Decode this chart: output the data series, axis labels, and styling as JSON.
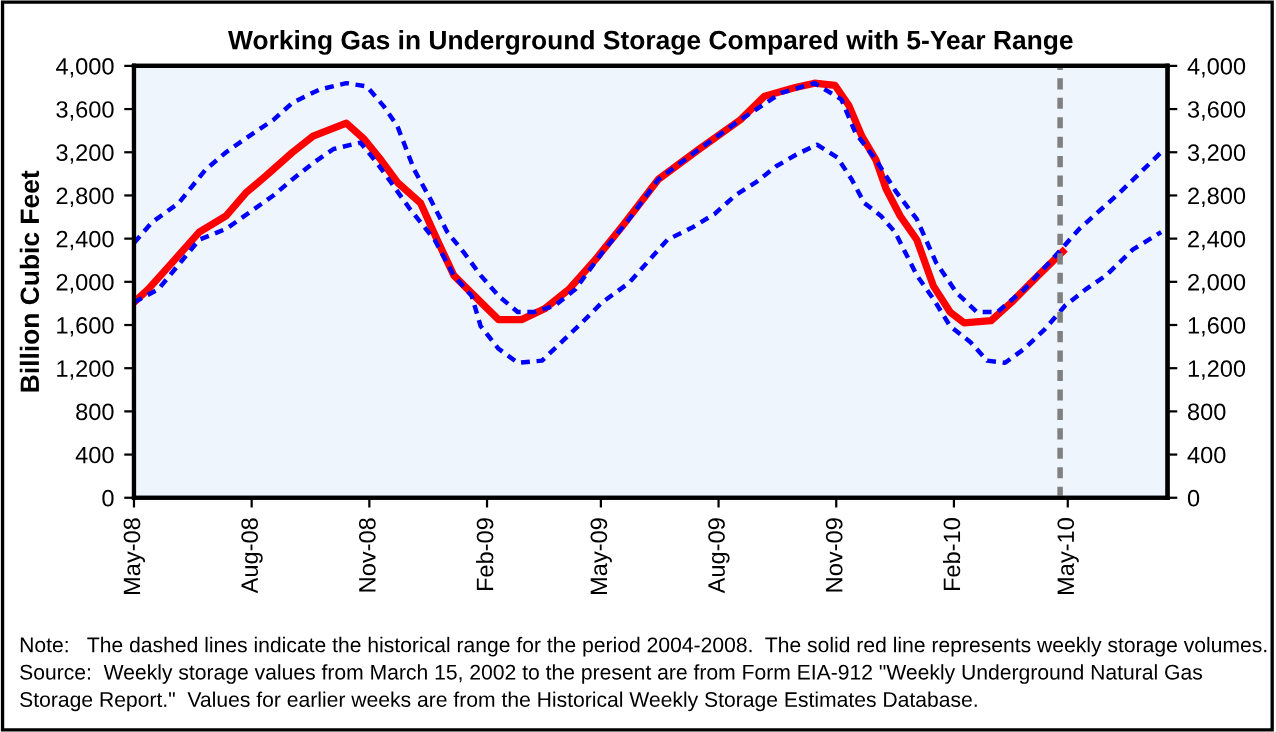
{
  "chart_data": {
    "type": "line",
    "title": "Working Gas in Underground Storage Compared with 5-Year Range",
    "ylabel": "Billion Cubic Feet",
    "xlim": [
      "2008-05-01",
      "2010-07-18"
    ],
    "xticks": [
      {
        "value": "2008-05-01",
        "label": "May-08"
      },
      {
        "value": "2008-08-01",
        "label": "Aug-08"
      },
      {
        "value": "2008-11-01",
        "label": "Nov-08"
      },
      {
        "value": "2009-02-01",
        "label": "Feb-09"
      },
      {
        "value": "2009-05-01",
        "label": "May-09"
      },
      {
        "value": "2009-08-01",
        "label": "Aug-09"
      },
      {
        "value": "2009-11-01",
        "label": "Nov-09"
      },
      {
        "value": "2010-02-01",
        "label": "Feb-10"
      },
      {
        "value": "2010-05-01",
        "label": "May-10"
      }
    ],
    "ylim": [
      0,
      4000
    ],
    "yticks": [
      {
        "value": 0,
        "label": "0"
      },
      {
        "value": 400,
        "label": "400"
      },
      {
        "value": 800,
        "label": "800"
      },
      {
        "value": 1200,
        "label": "1,200"
      },
      {
        "value": 1600,
        "label": "1,600"
      },
      {
        "value": 2000,
        "label": "2,000"
      },
      {
        "value": 2400,
        "label": "2,400"
      },
      {
        "value": 2800,
        "label": "2,800"
      },
      {
        "value": 3200,
        "label": "3,200"
      },
      {
        "value": 3600,
        "label": "3,600"
      },
      {
        "value": 4000,
        "label": "4,000"
      }
    ],
    "y2lim": [
      0,
      4000
    ],
    "y2ticks": [
      {
        "value": 0,
        "label": "0"
      },
      {
        "value": 400,
        "label": "400"
      },
      {
        "value": 800,
        "label": "800"
      },
      {
        "value": 1200,
        "label": "1,200"
      },
      {
        "value": 1600,
        "label": "1,600"
      },
      {
        "value": 2000,
        "label": "2,000"
      },
      {
        "value": 2400,
        "label": "2,400"
      },
      {
        "value": 2800,
        "label": "2,800"
      },
      {
        "value": 3200,
        "label": "3,200"
      },
      {
        "value": 3600,
        "label": "3,600"
      },
      {
        "value": 4000,
        "label": "4,000"
      }
    ],
    "grid": false,
    "legend": false,
    "ref_lines": [
      {
        "axis": "x",
        "value": "2010-04-25",
        "color": "#808080",
        "line_style": "dashed"
      }
    ],
    "series": [
      {
        "color": "#0000ff",
        "line_style": "dashed",
        "x": [
          "2008-05-01",
          "2008-05-15",
          "2008-06-05",
          "2008-06-26",
          "2008-07-12",
          "2008-07-30",
          "2008-08-18",
          "2008-09-02",
          "2008-09-23",
          "2008-10-14",
          "2008-10-30",
          "2008-11-12",
          "2008-11-23",
          "2008-12-06",
          "2008-12-19",
          "2009-01-01",
          "2009-01-14",
          "2009-01-27",
          "2009-02-10",
          "2009-02-25",
          "2009-03-10",
          "2009-03-26",
          "2009-04-11",
          "2009-05-02",
          "2009-05-23",
          "2009-06-15",
          "2009-07-17",
          "2009-08-18",
          "2009-09-19",
          "2009-10-15",
          "2009-11-05",
          "2009-11-16",
          "2009-12-02",
          "2009-12-18",
          "2010-01-03",
          "2010-01-18",
          "2010-02-03",
          "2010-02-19",
          "2010-03-07",
          "2010-03-28",
          "2010-04-19",
          "2010-05-10",
          "2010-06-11",
          "2010-07-13"
        ],
        "values": [
          2360,
          2550,
          2730,
          3040,
          3200,
          3350,
          3500,
          3660,
          3780,
          3840,
          3810,
          3630,
          3440,
          3040,
          2760,
          2460,
          2270,
          2060,
          1870,
          1720,
          1720,
          1780,
          1930,
          2270,
          2580,
          2950,
          3230,
          3500,
          3750,
          3840,
          3690,
          3380,
          3130,
          2830,
          2580,
          2180,
          1900,
          1720,
          1720,
          1930,
          2210,
          2490,
          2830,
          3200
        ]
      },
      {
        "color": "#0000ff",
        "line_style": "dashed",
        "x": [
          "2008-05-01",
          "2008-05-20",
          "2008-06-21",
          "2008-07-12",
          "2008-07-30",
          "2008-08-18",
          "2008-09-02",
          "2008-09-18",
          "2008-10-04",
          "2008-10-25",
          "2008-11-07",
          "2008-11-18",
          "2008-12-03",
          "2008-12-22",
          "2009-01-06",
          "2009-01-20",
          "2009-01-27",
          "2009-02-10",
          "2009-02-25",
          "2009-03-16",
          "2009-03-31",
          "2009-04-16",
          "2009-05-02",
          "2009-05-23",
          "2009-06-22",
          "2009-07-11",
          "2009-07-29",
          "2009-08-14",
          "2009-08-30",
          "2009-09-15",
          "2009-10-01",
          "2009-10-17",
          "2009-11-02",
          "2009-11-13",
          "2009-11-23",
          "2009-12-06",
          "2009-12-17",
          "2010-01-03",
          "2010-01-16",
          "2010-01-29",
          "2010-02-14",
          "2010-02-27",
          "2010-03-13",
          "2010-03-28",
          "2010-04-13",
          "2010-04-29",
          "2010-05-15",
          "2010-05-31",
          "2010-06-21",
          "2010-07-13"
        ],
        "values": [
          1810,
          1930,
          2390,
          2490,
          2640,
          2800,
          2950,
          3100,
          3230,
          3290,
          3100,
          2920,
          2670,
          2390,
          2060,
          1870,
          1590,
          1380,
          1250,
          1270,
          1440,
          1620,
          1810,
          1990,
          2390,
          2500,
          2630,
          2800,
          2920,
          3070,
          3180,
          3270,
          3150,
          2950,
          2730,
          2610,
          2460,
          2060,
          1840,
          1590,
          1440,
          1270,
          1250,
          1380,
          1560,
          1780,
          1930,
          2060,
          2300,
          2460
        ]
      },
      {
        "color": "#ff0000",
        "line_style": "solid",
        "x": [
          "2008-05-01",
          "2008-05-12",
          "2008-05-31",
          "2008-06-21",
          "2008-07-12",
          "2008-07-28",
          "2008-08-12",
          "2008-09-02",
          "2008-09-18",
          "2008-10-01",
          "2008-10-14",
          "2008-10-28",
          "2008-11-10",
          "2008-11-23",
          "2008-12-11",
          "2008-12-24",
          "2009-01-06",
          "2009-01-17",
          "2009-02-10",
          "2009-02-28",
          "2009-03-18",
          "2009-04-06",
          "2009-04-27",
          "2009-05-18",
          "2009-06-15",
          "2009-07-17",
          "2009-08-18",
          "2009-09-06",
          "2009-09-30",
          "2009-10-15",
          "2009-10-31",
          "2009-11-11",
          "2009-11-21",
          "2009-12-02",
          "2009-12-10",
          "2009-12-21",
          "2010-01-03",
          "2010-01-16",
          "2010-01-29",
          "2010-02-09",
          "2010-03-02",
          "2010-03-18",
          "2010-04-08",
          "2010-04-27"
        ],
        "values": [
          1810,
          1930,
          2180,
          2460,
          2610,
          2830,
          2980,
          3200,
          3350,
          3410,
          3470,
          3320,
          3130,
          2920,
          2730,
          2390,
          2060,
          1930,
          1650,
          1650,
          1750,
          1930,
          2210,
          2520,
          2950,
          3230,
          3500,
          3720,
          3800,
          3840,
          3820,
          3630,
          3350,
          3130,
          2860,
          2610,
          2390,
          1960,
          1720,
          1620,
          1640,
          1810,
          2060,
          2280
        ]
      }
    ],
    "annotations": [
      "Note:   The dashed lines indicate the historical range for the period 2004-2008.  The solid red line represents weekly storage volumes.  Source:  Weekly storage values from March 15, 2002 to the present are from Form EIA-912 \"Weekly Underground Natural Gas Storage Report.\"  Values for earlier weeks are from the Historical Weekly Storage Estimates Database."
    ]
  }
}
